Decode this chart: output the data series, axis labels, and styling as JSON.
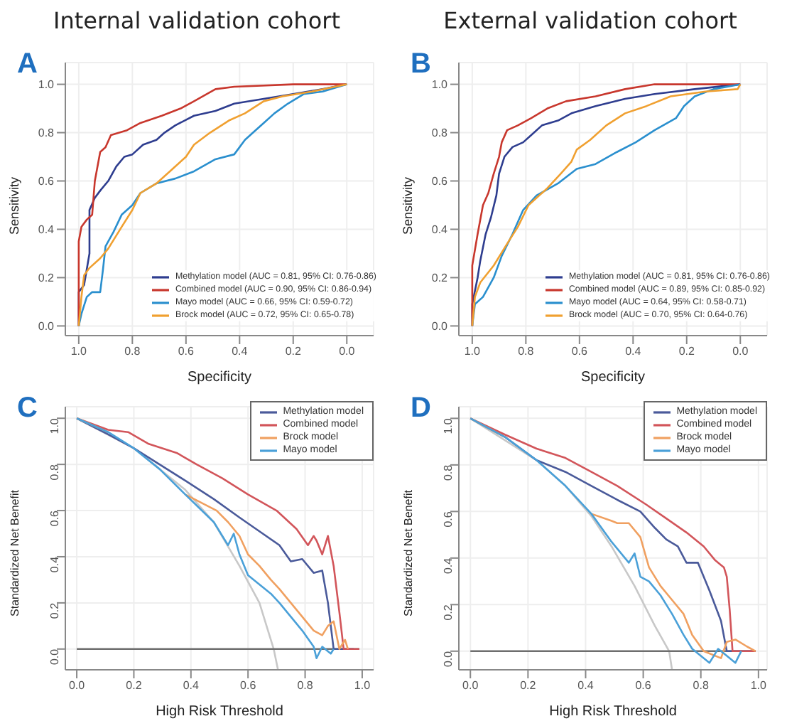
{
  "chart_data": [
    {
      "type": "line",
      "title": "Internal validation cohort",
      "annotations": [
        "A"
      ],
      "xlabel": "Specificity",
      "ylabel": "Sensitivity",
      "xlim": [
        1.05,
        -0.1
      ],
      "ylim": [
        -0.04,
        1.09
      ],
      "xticks": [
        {
          "value": 1,
          "label": "1.0"
        },
        {
          "value": 0.8,
          "label": "0.8"
        },
        {
          "value": 0.6,
          "label": "0.6"
        },
        {
          "value": 0.4,
          "label": "0.4"
        },
        {
          "value": 0.2,
          "label": "0.2"
        },
        {
          "value": 0,
          "label": "0.0"
        }
      ],
      "yticks": [
        {
          "value": 0,
          "label": "0.0"
        },
        {
          "value": 0.2,
          "label": "0.2"
        },
        {
          "value": 0.4,
          "label": "0.4"
        },
        {
          "value": 0.6,
          "label": "0.6"
        },
        {
          "value": 0.8,
          "label": "0.8"
        },
        {
          "value": 1,
          "label": "1.0"
        }
      ],
      "grid": true,
      "legend": "bottom right",
      "marker": "none",
      "series": [
        {
          "name": "Methylation model (AUC = 0.81, 95% CI: 0.76-0.86)",
          "color": "#2e3d8f",
          "x": [
            1,
            1,
            0.98,
            0.96,
            0.96,
            0.94,
            0.92,
            0.89,
            0.86,
            0.83,
            0.8,
            0.76,
            0.71,
            0.68,
            0.64,
            0.57,
            0.49,
            0.42,
            0.31,
            0.2,
            0.09,
            0
          ],
          "values": [
            0,
            0.14,
            0.17,
            0.3,
            0.48,
            0.53,
            0.56,
            0.6,
            0.66,
            0.7,
            0.71,
            0.75,
            0.77,
            0.8,
            0.83,
            0.87,
            0.89,
            0.92,
            0.94,
            0.96,
            0.98,
            1
          ]
        },
        {
          "name": "Combined model (AUC = 0.90, 95% CI: 0.86-0.94)",
          "color": "#c8372d",
          "x": [
            1,
            1,
            0.99,
            0.97,
            0.95,
            0.94,
            0.92,
            0.9,
            0.88,
            0.82,
            0.77,
            0.69,
            0.62,
            0.57,
            0.49,
            0.42,
            0.2,
            0
          ],
          "values": [
            0,
            0.35,
            0.41,
            0.44,
            0.46,
            0.6,
            0.72,
            0.74,
            0.79,
            0.81,
            0.84,
            0.87,
            0.9,
            0.93,
            0.98,
            0.99,
            1,
            1
          ]
        },
        {
          "name": "Mayo model (AUC = 0.66, 95% CI: 0.59-0.72)",
          "color": "#2a8fce",
          "x": [
            1,
            0.99,
            0.97,
            0.95,
            0.92,
            0.91,
            0.9,
            0.87,
            0.84,
            0.8,
            0.77,
            0.71,
            0.64,
            0.57,
            0.49,
            0.42,
            0.38,
            0.35,
            0.31,
            0.27,
            0.22,
            0.16,
            0.09,
            0
          ],
          "values": [
            0,
            0.05,
            0.12,
            0.14,
            0.14,
            0.23,
            0.33,
            0.39,
            0.46,
            0.5,
            0.55,
            0.59,
            0.61,
            0.64,
            0.69,
            0.71,
            0.77,
            0.8,
            0.84,
            0.88,
            0.92,
            0.96,
            0.97,
            1
          ]
        },
        {
          "name": "Brock model (AUC = 0.72, 95% CI: 0.65-0.78)",
          "color": "#f0a030",
          "x": [
            1,
            0.99,
            0.98,
            0.96,
            0.92,
            0.89,
            0.84,
            0.8,
            0.77,
            0.71,
            0.66,
            0.6,
            0.57,
            0.51,
            0.44,
            0.38,
            0.31,
            0.24,
            0.13,
            0
          ],
          "values": [
            0,
            0.12,
            0.21,
            0.24,
            0.28,
            0.32,
            0.41,
            0.48,
            0.55,
            0.59,
            0.64,
            0.7,
            0.75,
            0.8,
            0.85,
            0.88,
            0.93,
            0.95,
            0.97,
            1
          ]
        }
      ]
    },
    {
      "type": "line",
      "title": "External validation cohort",
      "annotations": [
        "B"
      ],
      "xlabel": "Specificity",
      "ylabel": "Sensitivity",
      "xlim": [
        1.05,
        -0.1
      ],
      "ylim": [
        -0.04,
        1.09
      ],
      "xticks": [
        {
          "value": 1,
          "label": "1.0"
        },
        {
          "value": 0.8,
          "label": "0.8"
        },
        {
          "value": 0.6,
          "label": "0.6"
        },
        {
          "value": 0.4,
          "label": "0.4"
        },
        {
          "value": 0.2,
          "label": "0.2"
        },
        {
          "value": 0,
          "label": "0.0"
        }
      ],
      "yticks": [
        {
          "value": 0,
          "label": "0.0"
        },
        {
          "value": 0.2,
          "label": "0.2"
        },
        {
          "value": 0.4,
          "label": "0.4"
        },
        {
          "value": 0.6,
          "label": "0.6"
        },
        {
          "value": 0.8,
          "label": "0.8"
        },
        {
          "value": 1,
          "label": "1.0"
        }
      ],
      "grid": true,
      "legend": "bottom right",
      "marker": "none",
      "series": [
        {
          "name": "Methylation model (AUC = 0.81, 95% CI: 0.76-0.86)",
          "color": "#2e3d8f",
          "x": [
            1,
            1,
            0.98,
            0.97,
            0.95,
            0.93,
            0.91,
            0.9,
            0.88,
            0.85,
            0.81,
            0.78,
            0.74,
            0.68,
            0.63,
            0.54,
            0.43,
            0.32,
            0.17,
            0
          ],
          "values": [
            0,
            0.09,
            0.2,
            0.27,
            0.38,
            0.45,
            0.54,
            0.63,
            0.7,
            0.74,
            0.76,
            0.79,
            0.83,
            0.85,
            0.88,
            0.91,
            0.94,
            0.96,
            0.98,
            1
          ]
        },
        {
          "name": "Combined model (AUC = 0.89, 95% CI: 0.85-0.92)",
          "color": "#c8372d",
          "x": [
            1,
            1,
            0.98,
            0.96,
            0.94,
            0.92,
            0.9,
            0.89,
            0.87,
            0.83,
            0.78,
            0.72,
            0.65,
            0.54,
            0.43,
            0.32,
            0
          ],
          "values": [
            0,
            0.25,
            0.38,
            0.5,
            0.55,
            0.63,
            0.7,
            0.76,
            0.81,
            0.83,
            0.86,
            0.9,
            0.93,
            0.95,
            0.98,
            1,
            1
          ]
        },
        {
          "name": "Mayo model (AUC = 0.64, 95% CI: 0.58-0.71)",
          "color": "#2a8fce",
          "x": [
            1,
            0.99,
            0.96,
            0.92,
            0.89,
            0.85,
            0.81,
            0.76,
            0.68,
            0.61,
            0.54,
            0.46,
            0.39,
            0.32,
            0.24,
            0.21,
            0.17,
            0.1,
            0
          ],
          "values": [
            0,
            0.09,
            0.12,
            0.2,
            0.29,
            0.38,
            0.48,
            0.54,
            0.59,
            0.65,
            0.67,
            0.72,
            0.76,
            0.81,
            0.86,
            0.91,
            0.95,
            0.98,
            1
          ]
        },
        {
          "name": "Brock model (AUC = 0.70, 95% CI: 0.64-0.76)",
          "color": "#f0a030",
          "x": [
            1,
            0.99,
            0.97,
            0.92,
            0.87,
            0.83,
            0.79,
            0.72,
            0.67,
            0.63,
            0.61,
            0.56,
            0.5,
            0.43,
            0.35,
            0.26,
            0.13,
            0.01,
            0
          ],
          "values": [
            0,
            0.12,
            0.18,
            0.25,
            0.34,
            0.41,
            0.5,
            0.57,
            0.63,
            0.68,
            0.73,
            0.77,
            0.83,
            0.88,
            0.91,
            0.95,
            0.97,
            0.98,
            1
          ]
        }
      ]
    },
    {
      "type": "line",
      "annotations": [
        "C"
      ],
      "xlabel": "High Risk Threshold",
      "ylabel": "Standardized Net Benefit",
      "xlim": [
        -0.04,
        1.04
      ],
      "ylim": [
        -0.09,
        1.05
      ],
      "xticks": [
        {
          "value": 0,
          "label": "0.0"
        },
        {
          "value": 0.2,
          "label": "0.2"
        },
        {
          "value": 0.4,
          "label": "0.4"
        },
        {
          "value": 0.6,
          "label": "0.6"
        },
        {
          "value": 0.8,
          "label": "0.8"
        },
        {
          "value": 1,
          "label": "1.0"
        }
      ],
      "yticks": [
        {
          "value": 0,
          "label": "0.0"
        },
        {
          "value": 0.2,
          "label": "0.2"
        },
        {
          "value": 0.4,
          "label": "0.4"
        },
        {
          "value": 0.6,
          "label": "0.6"
        },
        {
          "value": 0.8,
          "label": "0.8"
        },
        {
          "value": 1,
          "label": "1.0"
        }
      ],
      "grid": true,
      "legend": "top right",
      "marker": "none",
      "series": [
        {
          "color": "#c8c8c8",
          "x": [
            0,
            0.2,
            0.38,
            0.48,
            0.57,
            0.64,
            0.69,
            0.705
          ],
          "values": [
            1,
            0.87,
            0.69,
            0.55,
            0.36,
            0.2,
            0,
            -0.09
          ]
        },
        {
          "color": "#6e6e6e",
          "x": [
            0,
            0.99
          ],
          "values": [
            0,
            0
          ]
        },
        {
          "name": "Methylation model",
          "color": "#4a5a9a",
          "x": [
            0,
            0.11,
            0.2,
            0.29,
            0.38,
            0.48,
            0.57,
            0.64,
            0.71,
            0.75,
            0.79,
            0.83,
            0.86,
            0.88,
            0.9,
            0.97
          ],
          "values": [
            1,
            0.93,
            0.87,
            0.8,
            0.73,
            0.65,
            0.57,
            0.51,
            0.45,
            0.38,
            0.39,
            0.33,
            0.34,
            0.2,
            0,
            0
          ]
        },
        {
          "name": "Combined model",
          "color": "#d2555a",
          "x": [
            0,
            0.11,
            0.18,
            0.25,
            0.35,
            0.42,
            0.51,
            0.6,
            0.7,
            0.77,
            0.81,
            0.83,
            0.84,
            0.86,
            0.88,
            0.9,
            0.92,
            0.935,
            0.99
          ],
          "values": [
            1,
            0.95,
            0.94,
            0.89,
            0.85,
            0.8,
            0.74,
            0.67,
            0.6,
            0.52,
            0.45,
            0.49,
            0.47,
            0.41,
            0.49,
            0.36,
            0.16,
            0,
            0
          ]
        },
        {
          "name": "Brock model",
          "color": "#f0a060",
          "x": [
            0,
            0.11,
            0.2,
            0.29,
            0.38,
            0.49,
            0.53,
            0.57,
            0.6,
            0.64,
            0.68,
            0.71,
            0.75,
            0.79,
            0.83,
            0.86,
            0.88,
            0.9,
            0.92,
            0.94,
            0.95
          ],
          "values": [
            1,
            0.94,
            null,
            null,
            0.67,
            0.6,
            0.55,
            0.49,
            0.41,
            0.36,
            0.3,
            0.26,
            0.2,
            0.14,
            0.08,
            0.06,
            0.1,
            0.12,
            0,
            0.04,
            0
          ]
        },
        {
          "name": "Mayo model",
          "color": "#4aa0d8",
          "x": [
            0,
            0.11,
            0.2,
            0.29,
            0.38,
            0.48,
            0.53,
            0.55,
            0.57,
            0.6,
            0.64,
            0.68,
            0.71,
            0.75,
            0.79,
            0.83,
            0.84,
            0.86,
            0.89,
            0.9
          ],
          "values": [
            1,
            0.94,
            0.87,
            0.78,
            0.67,
            0.55,
            0.45,
            0.5,
            0.41,
            0.32,
            0.28,
            0.24,
            0.2,
            0.14,
            0.08,
            0.01,
            -0.04,
            0.01,
            -0.02,
            0
          ]
        }
      ]
    },
    {
      "type": "line",
      "annotations": [
        "D"
      ],
      "xlabel": "High Risk Threshold",
      "ylabel": "Standardized Net Benefit",
      "xlim": [
        -0.04,
        1.03
      ],
      "ylim": [
        -0.08,
        1.05
      ],
      "xticks": [
        {
          "value": 0,
          "label": "0.0"
        },
        {
          "value": 0.2,
          "label": "0.2"
        },
        {
          "value": 0.4,
          "label": "0.4"
        },
        {
          "value": 0.6,
          "label": "0.6"
        },
        {
          "value": 0.8,
          "label": "0.8"
        },
        {
          "value": 1,
          "label": "1.0"
        }
      ],
      "yticks": [
        {
          "value": 0,
          "label": "0.0"
        },
        {
          "value": 0.2,
          "label": "0.2"
        },
        {
          "value": 0.4,
          "label": "0.4"
        },
        {
          "value": 0.6,
          "label": "0.6"
        },
        {
          "value": 0.8,
          "label": "0.8"
        },
        {
          "value": 1,
          "label": "1.0"
        }
      ],
      "grid": true,
      "legend": "top right",
      "marker": "none",
      "series": [
        {
          "color": "#c8c8c8",
          "x": [
            0,
            0.23,
            0.33,
            0.42,
            0.49,
            0.57,
            0.64,
            0.69,
            0.7
          ],
          "values": [
            1,
            0.82,
            0.71,
            0.58,
            0.45,
            0.28,
            0.11,
            0,
            -0.08
          ]
        },
        {
          "color": "#6e6e6e",
          "x": [
            0,
            0.99
          ],
          "values": [
            0,
            0
          ]
        },
        {
          "name": "Methylation model",
          "color": "#4a5a9a",
          "x": [
            0,
            0.12,
            0.23,
            0.33,
            0.42,
            0.51,
            0.59,
            0.64,
            0.68,
            0.72,
            0.75,
            0.79,
            0.83,
            0.87,
            0.89,
            0.99
          ],
          "values": [
            1,
            0.92,
            0.82,
            0.77,
            0.71,
            0.65,
            0.6,
            0.53,
            0.48,
            0.45,
            0.38,
            0.38,
            0.26,
            0.13,
            0,
            0
          ]
        },
        {
          "name": "Combined model",
          "color": "#d2555a",
          "x": [
            0,
            0.12,
            0.23,
            0.33,
            0.42,
            0.51,
            0.61,
            0.68,
            0.75,
            0.81,
            0.85,
            0.87,
            0.88,
            0.89,
            0.9,
            0.91,
            0.99
          ],
          "values": [
            1,
            0.93,
            0.87,
            0.83,
            0.77,
            0.71,
            0.63,
            0.57,
            0.51,
            0.45,
            0.39,
            0.37,
            0.36,
            0.32,
            0.18,
            0,
            0
          ]
        },
        {
          "name": "Brock model",
          "color": "#f0a060",
          "x": [
            0,
            0.12,
            0.23,
            0.33,
            0.42,
            0.49,
            0.51,
            0.55,
            0.59,
            0.62,
            0.66,
            0.7,
            0.74,
            0.77,
            0.81,
            0.87,
            0.89,
            0.92,
            0.96,
            0.99
          ],
          "values": [
            1,
            0.92,
            null,
            null,
            0.59,
            0.56,
            0.55,
            0.55,
            0.49,
            0.36,
            0.28,
            0.22,
            0.16,
            0.07,
            0,
            -0.03,
            0.04,
            0.05,
            0.02,
            0
          ]
        },
        {
          "name": "Mayo model",
          "color": "#4aa0d8",
          "x": [
            0,
            0.12,
            0.23,
            0.33,
            0.42,
            0.49,
            0.55,
            0.57,
            0.59,
            0.62,
            0.66,
            0.7,
            0.74,
            0.77,
            0.83,
            0.86,
            0.88,
            0.92,
            0.94
          ],
          "values": [
            1,
            0.92,
            0.82,
            0.71,
            0.59,
            0.47,
            0.38,
            0.42,
            0.32,
            0.3,
            0.24,
            0.16,
            0.07,
            0.01,
            -0.05,
            0.01,
            -0.01,
            -0.05,
            0
          ]
        }
      ]
    }
  ]
}
